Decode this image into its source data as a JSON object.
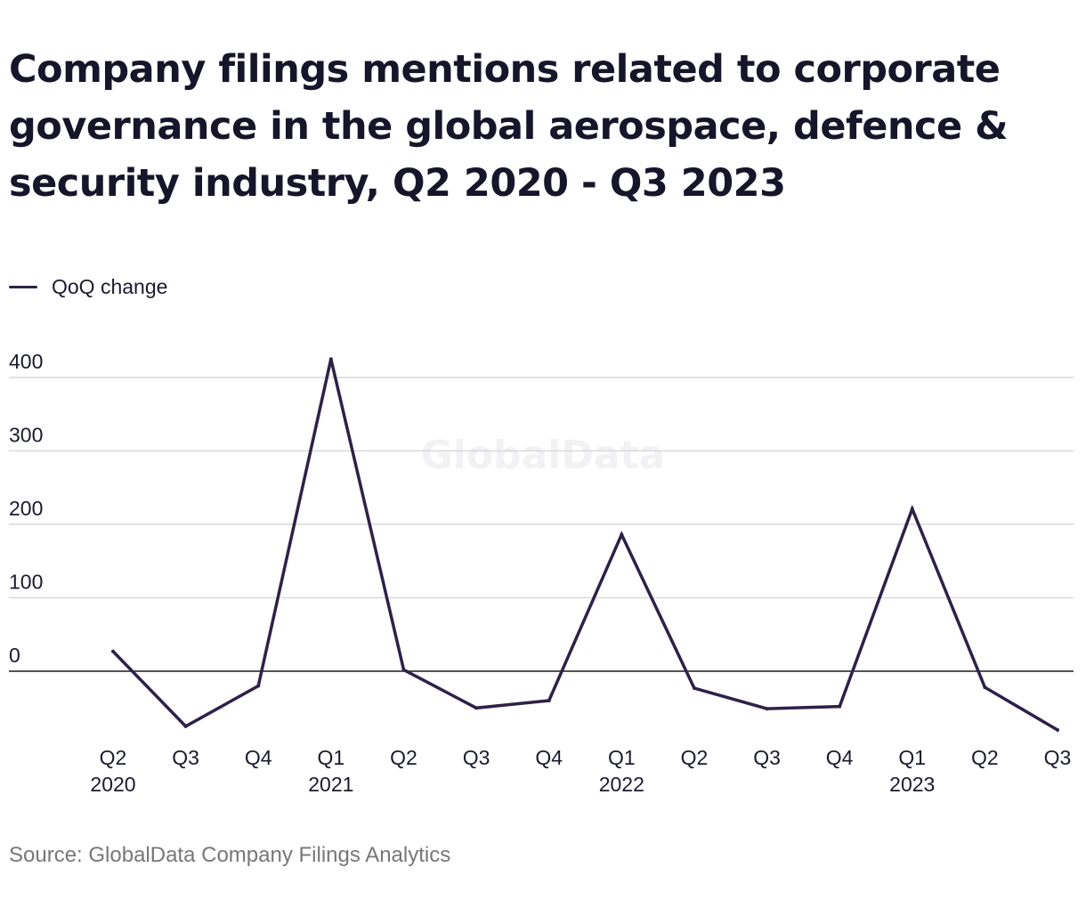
{
  "title": "Company filings mentions related to corporate governance in the global aerospace, defence & security industry, Q2 2020 - Q3 2023",
  "source": "Source: GlobalData Company Filings Analytics",
  "watermark": "GlobalData",
  "colors": {
    "line": "#2e2148",
    "grid": "#d9d9d9",
    "zero_line": "#1a1a1a",
    "text": "#1a1a2e",
    "source_text": "#777777"
  },
  "chart_data": {
    "type": "line",
    "title": "Company filings mentions related to corporate governance in the global aerospace, defence & security industry, Q2 2020 - Q3 2023",
    "xlabel": "",
    "ylabel": "",
    "ylim": [
      -80,
      420
    ],
    "y_ticks": [
      0,
      100,
      200,
      300,
      400
    ],
    "grid": true,
    "legend_position": "top-left",
    "categories": [
      "Q2 2020",
      "Q3 2020",
      "Q4 2020",
      "Q1 2021",
      "Q2 2021",
      "Q3 2021",
      "Q4 2021",
      "Q1 2022",
      "Q2 2022",
      "Q3 2022",
      "Q4 2022",
      "Q1 2023",
      "Q2 2023",
      "Q3 2023"
    ],
    "x_tick_labels": [
      {
        "quarter": "Q2",
        "year": "2020"
      },
      {
        "quarter": "Q3",
        "year": ""
      },
      {
        "quarter": "Q4",
        "year": ""
      },
      {
        "quarter": "Q1",
        "year": "2021"
      },
      {
        "quarter": "Q2",
        "year": ""
      },
      {
        "quarter": "Q3",
        "year": ""
      },
      {
        "quarter": "Q4",
        "year": ""
      },
      {
        "quarter": "Q1",
        "year": "2022"
      },
      {
        "quarter": "Q2",
        "year": ""
      },
      {
        "quarter": "Q3",
        "year": ""
      },
      {
        "quarter": "Q4",
        "year": ""
      },
      {
        "quarter": "Q1",
        "year": "2023"
      },
      {
        "quarter": "Q2",
        "year": ""
      },
      {
        "quarter": "Q3",
        "year": ""
      }
    ],
    "series": [
      {
        "name": "QoQ change",
        "color": "#2e2148",
        "values": [
          27,
          -75,
          -20,
          425,
          2,
          -50,
          -40,
          186,
          -23,
          -51,
          -48,
          221,
          -22,
          -80
        ]
      }
    ]
  }
}
